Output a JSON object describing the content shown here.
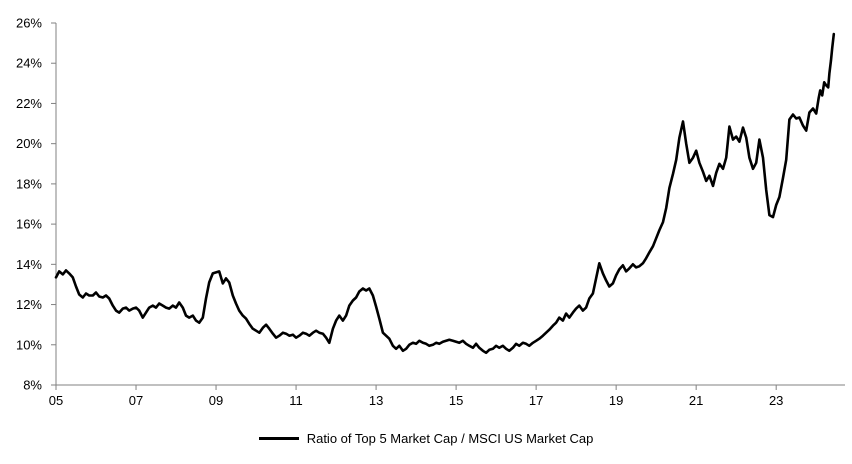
{
  "colors": {
    "background": "#ffffff",
    "line": "#000000",
    "axis": "#808080",
    "text": "#000000"
  },
  "legend": {
    "label": "Ratio of Top 5 Market Cap / MSCI US Market Cap"
  },
  "chart_data": {
    "type": "line",
    "title": "",
    "xlabel": "",
    "ylabel": "",
    "grid": false,
    "legend_position": "bottom-center",
    "x_range": [
      2005,
      2024.72
    ],
    "y_range": [
      8,
      26
    ],
    "x_ticks": [
      {
        "year": 2005,
        "label": "05"
      },
      {
        "year": 2007,
        "label": "07"
      },
      {
        "year": 2009,
        "label": "09"
      },
      {
        "year": 2011,
        "label": "11"
      },
      {
        "year": 2013,
        "label": "13"
      },
      {
        "year": 2015,
        "label": "15"
      },
      {
        "year": 2017,
        "label": "17"
      },
      {
        "year": 2019,
        "label": "19"
      },
      {
        "year": 2021,
        "label": "21"
      },
      {
        "year": 2023,
        "label": "23"
      }
    ],
    "y_ticks": [
      {
        "value": 8,
        "label": "8%"
      },
      {
        "value": 10,
        "label": "10%"
      },
      {
        "value": 12,
        "label": "12%"
      },
      {
        "value": 14,
        "label": "14%"
      },
      {
        "value": 16,
        "label": "16%"
      },
      {
        "value": 18,
        "label": "18%"
      },
      {
        "value": 20,
        "label": "20%"
      },
      {
        "value": 22,
        "label": "22%"
      },
      {
        "value": 24,
        "label": "24%"
      },
      {
        "value": 26,
        "label": "26%"
      }
    ],
    "series": [
      {
        "name": "Ratio of Top 5 Market Cap / MSCI US Market Cap",
        "color": "#000000",
        "line_width": 2.6,
        "points": [
          [
            2005.0,
            13.35
          ],
          [
            2005.08,
            13.65
          ],
          [
            2005.17,
            13.5
          ],
          [
            2005.25,
            13.7
          ],
          [
            2005.33,
            13.55
          ],
          [
            2005.42,
            13.35
          ],
          [
            2005.5,
            12.9
          ],
          [
            2005.58,
            12.5
          ],
          [
            2005.67,
            12.35
          ],
          [
            2005.75,
            12.55
          ],
          [
            2005.83,
            12.45
          ],
          [
            2005.92,
            12.45
          ],
          [
            2006.0,
            12.6
          ],
          [
            2006.08,
            12.4
          ],
          [
            2006.17,
            12.35
          ],
          [
            2006.25,
            12.45
          ],
          [
            2006.33,
            12.3
          ],
          [
            2006.42,
            11.95
          ],
          [
            2006.5,
            11.7
          ],
          [
            2006.58,
            11.6
          ],
          [
            2006.67,
            11.8
          ],
          [
            2006.75,
            11.85
          ],
          [
            2006.83,
            11.7
          ],
          [
            2006.92,
            11.8
          ],
          [
            2007.0,
            11.85
          ],
          [
            2007.08,
            11.7
          ],
          [
            2007.17,
            11.35
          ],
          [
            2007.25,
            11.6
          ],
          [
            2007.33,
            11.85
          ],
          [
            2007.42,
            11.95
          ],
          [
            2007.5,
            11.85
          ],
          [
            2007.58,
            12.05
          ],
          [
            2007.67,
            11.95
          ],
          [
            2007.75,
            11.85
          ],
          [
            2007.83,
            11.8
          ],
          [
            2007.92,
            11.95
          ],
          [
            2008.0,
            11.85
          ],
          [
            2008.08,
            12.1
          ],
          [
            2008.17,
            11.85
          ],
          [
            2008.25,
            11.45
          ],
          [
            2008.33,
            11.35
          ],
          [
            2008.42,
            11.45
          ],
          [
            2008.5,
            11.2
          ],
          [
            2008.58,
            11.1
          ],
          [
            2008.67,
            11.35
          ],
          [
            2008.75,
            12.3
          ],
          [
            2008.83,
            13.1
          ],
          [
            2008.92,
            13.55
          ],
          [
            2009.0,
            13.6
          ],
          [
            2009.08,
            13.65
          ],
          [
            2009.17,
            13.05
          ],
          [
            2009.25,
            13.3
          ],
          [
            2009.33,
            13.1
          ],
          [
            2009.42,
            12.45
          ],
          [
            2009.5,
            12.05
          ],
          [
            2009.58,
            11.7
          ],
          [
            2009.67,
            11.45
          ],
          [
            2009.75,
            11.3
          ],
          [
            2009.83,
            11.05
          ],
          [
            2009.92,
            10.8
          ],
          [
            2010.0,
            10.7
          ],
          [
            2010.08,
            10.6
          ],
          [
            2010.17,
            10.85
          ],
          [
            2010.25,
            11.0
          ],
          [
            2010.33,
            10.8
          ],
          [
            2010.42,
            10.55
          ],
          [
            2010.5,
            10.35
          ],
          [
            2010.58,
            10.45
          ],
          [
            2010.67,
            10.6
          ],
          [
            2010.75,
            10.55
          ],
          [
            2010.83,
            10.45
          ],
          [
            2010.92,
            10.5
          ],
          [
            2011.0,
            10.35
          ],
          [
            2011.08,
            10.45
          ],
          [
            2011.17,
            10.6
          ],
          [
            2011.25,
            10.55
          ],
          [
            2011.33,
            10.45
          ],
          [
            2011.42,
            10.6
          ],
          [
            2011.5,
            10.7
          ],
          [
            2011.58,
            10.6
          ],
          [
            2011.67,
            10.55
          ],
          [
            2011.75,
            10.35
          ],
          [
            2011.83,
            10.1
          ],
          [
            2011.92,
            10.8
          ],
          [
            2012.0,
            11.2
          ],
          [
            2012.08,
            11.45
          ],
          [
            2012.17,
            11.2
          ],
          [
            2012.25,
            11.45
          ],
          [
            2012.33,
            11.95
          ],
          [
            2012.42,
            12.2
          ],
          [
            2012.5,
            12.35
          ],
          [
            2012.58,
            12.65
          ],
          [
            2012.67,
            12.8
          ],
          [
            2012.75,
            12.7
          ],
          [
            2012.83,
            12.8
          ],
          [
            2012.92,
            12.45
          ],
          [
            2013.0,
            11.9
          ],
          [
            2013.08,
            11.3
          ],
          [
            2013.17,
            10.6
          ],
          [
            2013.25,
            10.45
          ],
          [
            2013.33,
            10.3
          ],
          [
            2013.42,
            9.95
          ],
          [
            2013.5,
            9.8
          ],
          [
            2013.58,
            9.95
          ],
          [
            2013.67,
            9.7
          ],
          [
            2013.75,
            9.8
          ],
          [
            2013.83,
            10.0
          ],
          [
            2013.92,
            10.1
          ],
          [
            2014.0,
            10.05
          ],
          [
            2014.08,
            10.2
          ],
          [
            2014.17,
            10.1
          ],
          [
            2014.25,
            10.05
          ],
          [
            2014.33,
            9.95
          ],
          [
            2014.42,
            10.0
          ],
          [
            2014.5,
            10.1
          ],
          [
            2014.58,
            10.05
          ],
          [
            2014.67,
            10.15
          ],
          [
            2014.75,
            10.2
          ],
          [
            2014.83,
            10.25
          ],
          [
            2014.92,
            10.2
          ],
          [
            2015.0,
            10.15
          ],
          [
            2015.08,
            10.1
          ],
          [
            2015.17,
            10.2
          ],
          [
            2015.25,
            10.05
          ],
          [
            2015.33,
            9.95
          ],
          [
            2015.42,
            9.85
          ],
          [
            2015.5,
            10.05
          ],
          [
            2015.58,
            9.85
          ],
          [
            2015.67,
            9.7
          ],
          [
            2015.75,
            9.6
          ],
          [
            2015.83,
            9.75
          ],
          [
            2015.92,
            9.8
          ],
          [
            2016.0,
            9.95
          ],
          [
            2016.08,
            9.85
          ],
          [
            2016.17,
            9.95
          ],
          [
            2016.25,
            9.8
          ],
          [
            2016.33,
            9.7
          ],
          [
            2016.42,
            9.85
          ],
          [
            2016.5,
            10.05
          ],
          [
            2016.58,
            9.95
          ],
          [
            2016.67,
            10.1
          ],
          [
            2016.75,
            10.05
          ],
          [
            2016.83,
            9.95
          ],
          [
            2016.92,
            10.1
          ],
          [
            2017.0,
            10.2
          ],
          [
            2017.08,
            10.3
          ],
          [
            2017.17,
            10.45
          ],
          [
            2017.25,
            10.6
          ],
          [
            2017.33,
            10.75
          ],
          [
            2017.42,
            10.95
          ],
          [
            2017.5,
            11.1
          ],
          [
            2017.58,
            11.35
          ],
          [
            2017.67,
            11.2
          ],
          [
            2017.75,
            11.55
          ],
          [
            2017.83,
            11.35
          ],
          [
            2017.92,
            11.6
          ],
          [
            2018.0,
            11.8
          ],
          [
            2018.08,
            11.95
          ],
          [
            2018.17,
            11.7
          ],
          [
            2018.25,
            11.85
          ],
          [
            2018.33,
            12.3
          ],
          [
            2018.42,
            12.55
          ],
          [
            2018.5,
            13.3
          ],
          [
            2018.58,
            14.05
          ],
          [
            2018.67,
            13.55
          ],
          [
            2018.75,
            13.2
          ],
          [
            2018.83,
            12.9
          ],
          [
            2018.92,
            13.05
          ],
          [
            2019.0,
            13.45
          ],
          [
            2019.08,
            13.75
          ],
          [
            2019.17,
            13.95
          ],
          [
            2019.25,
            13.65
          ],
          [
            2019.33,
            13.8
          ],
          [
            2019.42,
            14.0
          ],
          [
            2019.5,
            13.85
          ],
          [
            2019.58,
            13.9
          ],
          [
            2019.67,
            14.05
          ],
          [
            2019.75,
            14.3
          ],
          [
            2019.83,
            14.6
          ],
          [
            2019.92,
            14.9
          ],
          [
            2020.0,
            15.3
          ],
          [
            2020.08,
            15.7
          ],
          [
            2020.17,
            16.1
          ],
          [
            2020.25,
            16.8
          ],
          [
            2020.33,
            17.8
          ],
          [
            2020.42,
            18.5
          ],
          [
            2020.5,
            19.2
          ],
          [
            2020.58,
            20.3
          ],
          [
            2020.67,
            21.1
          ],
          [
            2020.75,
            20.0
          ],
          [
            2020.83,
            19.05
          ],
          [
            2020.92,
            19.3
          ],
          [
            2021.0,
            19.65
          ],
          [
            2021.08,
            19.05
          ],
          [
            2021.17,
            18.6
          ],
          [
            2021.25,
            18.15
          ],
          [
            2021.33,
            18.4
          ],
          [
            2021.42,
            17.9
          ],
          [
            2021.5,
            18.55
          ],
          [
            2021.58,
            19.0
          ],
          [
            2021.67,
            18.75
          ],
          [
            2021.75,
            19.3
          ],
          [
            2021.83,
            20.85
          ],
          [
            2021.92,
            20.2
          ],
          [
            2022.0,
            20.35
          ],
          [
            2022.08,
            20.1
          ],
          [
            2022.17,
            20.8
          ],
          [
            2022.25,
            20.3
          ],
          [
            2022.33,
            19.3
          ],
          [
            2022.42,
            18.75
          ],
          [
            2022.5,
            19.05
          ],
          [
            2022.58,
            20.2
          ],
          [
            2022.67,
            19.3
          ],
          [
            2022.75,
            17.7
          ],
          [
            2022.83,
            16.45
          ],
          [
            2022.92,
            16.35
          ],
          [
            2023.0,
            16.95
          ],
          [
            2023.08,
            17.35
          ],
          [
            2023.17,
            18.3
          ],
          [
            2023.25,
            19.2
          ],
          [
            2023.33,
            21.2
          ],
          [
            2023.42,
            21.45
          ],
          [
            2023.5,
            21.25
          ],
          [
            2023.58,
            21.3
          ],
          [
            2023.67,
            20.9
          ],
          [
            2023.75,
            20.65
          ],
          [
            2023.83,
            21.55
          ],
          [
            2023.92,
            21.75
          ],
          [
            2024.0,
            21.5
          ],
          [
            2024.06,
            22.25
          ],
          [
            2024.1,
            22.65
          ],
          [
            2024.15,
            22.4
          ],
          [
            2024.2,
            23.05
          ],
          [
            2024.25,
            22.9
          ],
          [
            2024.3,
            22.8
          ],
          [
            2024.33,
            23.5
          ],
          [
            2024.37,
            24.15
          ],
          [
            2024.4,
            24.75
          ],
          [
            2024.44,
            25.45
          ]
        ]
      }
    ]
  }
}
